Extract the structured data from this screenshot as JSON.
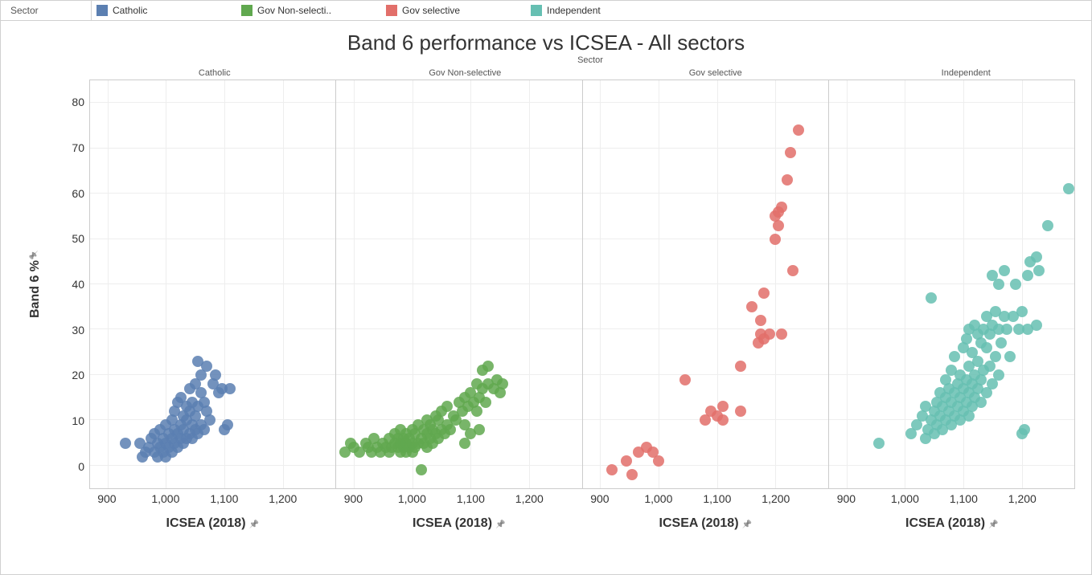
{
  "legend": {
    "title": "Sector",
    "items": [
      {
        "label": "Catholic",
        "color": "#5b7fb1"
      },
      {
        "label": "Gov Non-selecti..",
        "color": "#60a84f"
      },
      {
        "label": "Gov selective",
        "color": "#e26f6a"
      },
      {
        "label": "Independent",
        "color": "#66bfb2"
      }
    ]
  },
  "chart": {
    "title": "Band 6 performance vs ICSEA - All sectors",
    "sector_header": "Sector",
    "y_axis": {
      "title": "Band 6 %",
      "min": -5,
      "max": 85,
      "ticks": [
        0,
        10,
        20,
        30,
        40,
        50,
        60,
        70,
        80
      ]
    },
    "x_axis": {
      "title": "ICSEA (2018)",
      "min": 870,
      "max": 1290,
      "ticks": [
        900,
        1000,
        1100,
        1200
      ],
      "tick_labels": [
        "900",
        "1,000",
        "1,100",
        "1,200"
      ]
    },
    "panels": [
      {
        "name": "Catholic",
        "color": "#5b7fb1"
      },
      {
        "name": "Gov Non-selective",
        "color": "#60a84f"
      },
      {
        "name": "Gov selective",
        "color": "#e26f6a"
      },
      {
        "name": "Independent",
        "color": "#66bfb2"
      }
    ],
    "point_size": 14,
    "grid_color": "#eeeeee",
    "background": "#ffffff",
    "data": {
      "Catholic": [
        [
          930,
          5
        ],
        [
          955,
          5
        ],
        [
          960,
          2
        ],
        [
          965,
          3
        ],
        [
          970,
          4
        ],
        [
          975,
          6
        ],
        [
          980,
          3
        ],
        [
          980,
          7
        ],
        [
          985,
          2
        ],
        [
          985,
          5
        ],
        [
          990,
          4
        ],
        [
          990,
          8
        ],
        [
          995,
          3
        ],
        [
          995,
          6
        ],
        [
          1000,
          2
        ],
        [
          1000,
          5
        ],
        [
          1000,
          9
        ],
        [
          1005,
          4
        ],
        [
          1005,
          7
        ],
        [
          1010,
          3
        ],
        [
          1010,
          6
        ],
        [
          1010,
          10
        ],
        [
          1015,
          5
        ],
        [
          1015,
          8
        ],
        [
          1015,
          12
        ],
        [
          1020,
          4
        ],
        [
          1020,
          7
        ],
        [
          1020,
          14
        ],
        [
          1025,
          6
        ],
        [
          1025,
          9
        ],
        [
          1025,
          15
        ],
        [
          1030,
          5
        ],
        [
          1030,
          8
        ],
        [
          1030,
          11
        ],
        [
          1035,
          6
        ],
        [
          1035,
          10
        ],
        [
          1035,
          13
        ],
        [
          1040,
          7
        ],
        [
          1040,
          12
        ],
        [
          1040,
          17
        ],
        [
          1045,
          6
        ],
        [
          1045,
          9
        ],
        [
          1045,
          14
        ],
        [
          1050,
          8
        ],
        [
          1050,
          11
        ],
        [
          1050,
          18
        ],
        [
          1055,
          7
        ],
        [
          1055,
          13
        ],
        [
          1055,
          23
        ],
        [
          1060,
          9
        ],
        [
          1060,
          16
        ],
        [
          1060,
          20
        ],
        [
          1065,
          8
        ],
        [
          1065,
          14
        ],
        [
          1070,
          12
        ],
        [
          1070,
          22
        ],
        [
          1075,
          10
        ],
        [
          1080,
          18
        ],
        [
          1085,
          20
        ],
        [
          1090,
          16
        ],
        [
          1095,
          17
        ],
        [
          1100,
          8
        ],
        [
          1110,
          17
        ],
        [
          1105,
          9
        ]
      ],
      "Gov Non-selective": [
        [
          885,
          3
        ],
        [
          895,
          5
        ],
        [
          900,
          4
        ],
        [
          910,
          3
        ],
        [
          920,
          5
        ],
        [
          925,
          4
        ],
        [
          930,
          3
        ],
        [
          935,
          6
        ],
        [
          940,
          4
        ],
        [
          945,
          3
        ],
        [
          950,
          5
        ],
        [
          955,
          4
        ],
        [
          960,
          3
        ],
        [
          960,
          6
        ],
        [
          965,
          4
        ],
        [
          970,
          5
        ],
        [
          970,
          7
        ],
        [
          975,
          4
        ],
        [
          975,
          6
        ],
        [
          980,
          3
        ],
        [
          980,
          5
        ],
        [
          980,
          8
        ],
        [
          985,
          4
        ],
        [
          985,
          6
        ],
        [
          990,
          3
        ],
        [
          990,
          5
        ],
        [
          990,
          7
        ],
        [
          995,
          4
        ],
        [
          995,
          6
        ],
        [
          1000,
          3
        ],
        [
          1000,
          5
        ],
        [
          1000,
          8
        ],
        [
          1005,
          4
        ],
        [
          1005,
          7
        ],
        [
          1010,
          5
        ],
        [
          1010,
          9
        ],
        [
          1015,
          6
        ],
        [
          1015,
          -1
        ],
        [
          1020,
          5
        ],
        [
          1020,
          8
        ],
        [
          1025,
          4
        ],
        [
          1025,
          7
        ],
        [
          1025,
          10
        ],
        [
          1030,
          6
        ],
        [
          1030,
          9
        ],
        [
          1035,
          5
        ],
        [
          1035,
          8
        ],
        [
          1040,
          7
        ],
        [
          1040,
          11
        ],
        [
          1045,
          6
        ],
        [
          1045,
          10
        ],
        [
          1050,
          8
        ],
        [
          1050,
          12
        ],
        [
          1055,
          7
        ],
        [
          1060,
          9
        ],
        [
          1060,
          13
        ],
        [
          1065,
          8
        ],
        [
          1070,
          11
        ],
        [
          1075,
          10
        ],
        [
          1080,
          14
        ],
        [
          1085,
          12
        ],
        [
          1090,
          9
        ],
        [
          1090,
          15
        ],
        [
          1095,
          13
        ],
        [
          1100,
          7
        ],
        [
          1100,
          16
        ],
        [
          1105,
          14
        ],
        [
          1110,
          12
        ],
        [
          1110,
          18
        ],
        [
          1115,
          8
        ],
        [
          1115,
          15
        ],
        [
          1120,
          17
        ],
        [
          1120,
          21
        ],
        [
          1125,
          14
        ],
        [
          1130,
          18
        ],
        [
          1130,
          22
        ],
        [
          1140,
          17
        ],
        [
          1145,
          19
        ],
        [
          1150,
          16
        ],
        [
          1155,
          18
        ],
        [
          1090,
          5
        ]
      ],
      "Gov selective": [
        [
          920,
          -1
        ],
        [
          945,
          1
        ],
        [
          955,
          -2
        ],
        [
          965,
          3
        ],
        [
          980,
          4
        ],
        [
          990,
          3
        ],
        [
          1000,
          1
        ],
        [
          1045,
          19
        ],
        [
          1080,
          10
        ],
        [
          1090,
          12
        ],
        [
          1100,
          11
        ],
        [
          1110,
          10
        ],
        [
          1110,
          13
        ],
        [
          1140,
          12
        ],
        [
          1140,
          22
        ],
        [
          1160,
          35
        ],
        [
          1170,
          27
        ],
        [
          1175,
          29
        ],
        [
          1175,
          32
        ],
        [
          1180,
          28
        ],
        [
          1180,
          38
        ],
        [
          1190,
          29
        ],
        [
          1200,
          50
        ],
        [
          1200,
          55
        ],
        [
          1205,
          56
        ],
        [
          1205,
          53
        ],
        [
          1210,
          29
        ],
        [
          1210,
          57
        ],
        [
          1220,
          63
        ],
        [
          1225,
          69
        ],
        [
          1230,
          43
        ],
        [
          1240,
          74
        ]
      ],
      "Independent": [
        [
          955,
          5
        ],
        [
          1010,
          7
        ],
        [
          1020,
          9
        ],
        [
          1030,
          11
        ],
        [
          1035,
          6
        ],
        [
          1035,
          13
        ],
        [
          1040,
          8
        ],
        [
          1045,
          10
        ],
        [
          1045,
          37
        ],
        [
          1050,
          7
        ],
        [
          1050,
          12
        ],
        [
          1055,
          9
        ],
        [
          1055,
          14
        ],
        [
          1060,
          11
        ],
        [
          1060,
          16
        ],
        [
          1065,
          8
        ],
        [
          1065,
          13
        ],
        [
          1070,
          10
        ],
        [
          1070,
          15
        ],
        [
          1070,
          19
        ],
        [
          1075,
          12
        ],
        [
          1075,
          17
        ],
        [
          1080,
          9
        ],
        [
          1080,
          14
        ],
        [
          1080,
          21
        ],
        [
          1085,
          11
        ],
        [
          1085,
          16
        ],
        [
          1085,
          24
        ],
        [
          1090,
          13
        ],
        [
          1090,
          18
        ],
        [
          1095,
          10
        ],
        [
          1095,
          15
        ],
        [
          1095,
          20
        ],
        [
          1100,
          12
        ],
        [
          1100,
          17
        ],
        [
          1100,
          26
        ],
        [
          1105,
          14
        ],
        [
          1105,
          19
        ],
        [
          1105,
          28
        ],
        [
          1110,
          11
        ],
        [
          1110,
          16
        ],
        [
          1110,
          22
        ],
        [
          1110,
          30
        ],
        [
          1115,
          13
        ],
        [
          1115,
          18
        ],
        [
          1115,
          25
        ],
        [
          1120,
          15
        ],
        [
          1120,
          20
        ],
        [
          1120,
          31
        ],
        [
          1125,
          17
        ],
        [
          1125,
          23
        ],
        [
          1125,
          29
        ],
        [
          1130,
          14
        ],
        [
          1130,
          19
        ],
        [
          1130,
          27
        ],
        [
          1135,
          21
        ],
        [
          1135,
          30
        ],
        [
          1140,
          16
        ],
        [
          1140,
          26
        ],
        [
          1140,
          33
        ],
        [
          1145,
          22
        ],
        [
          1145,
          29
        ],
        [
          1150,
          18
        ],
        [
          1150,
          31
        ],
        [
          1150,
          42
        ],
        [
          1155,
          24
        ],
        [
          1155,
          34
        ],
        [
          1160,
          20
        ],
        [
          1160,
          30
        ],
        [
          1160,
          40
        ],
        [
          1165,
          27
        ],
        [
          1170,
          33
        ],
        [
          1170,
          43
        ],
        [
          1175,
          30
        ],
        [
          1180,
          24
        ],
        [
          1185,
          33
        ],
        [
          1190,
          40
        ],
        [
          1195,
          30
        ],
        [
          1200,
          7
        ],
        [
          1200,
          34
        ],
        [
          1205,
          8
        ],
        [
          1210,
          30
        ],
        [
          1210,
          42
        ],
        [
          1215,
          45
        ],
        [
          1225,
          31
        ],
        [
          1225,
          46
        ],
        [
          1230,
          43
        ],
        [
          1245,
          53
        ],
        [
          1280,
          61
        ]
      ]
    }
  }
}
